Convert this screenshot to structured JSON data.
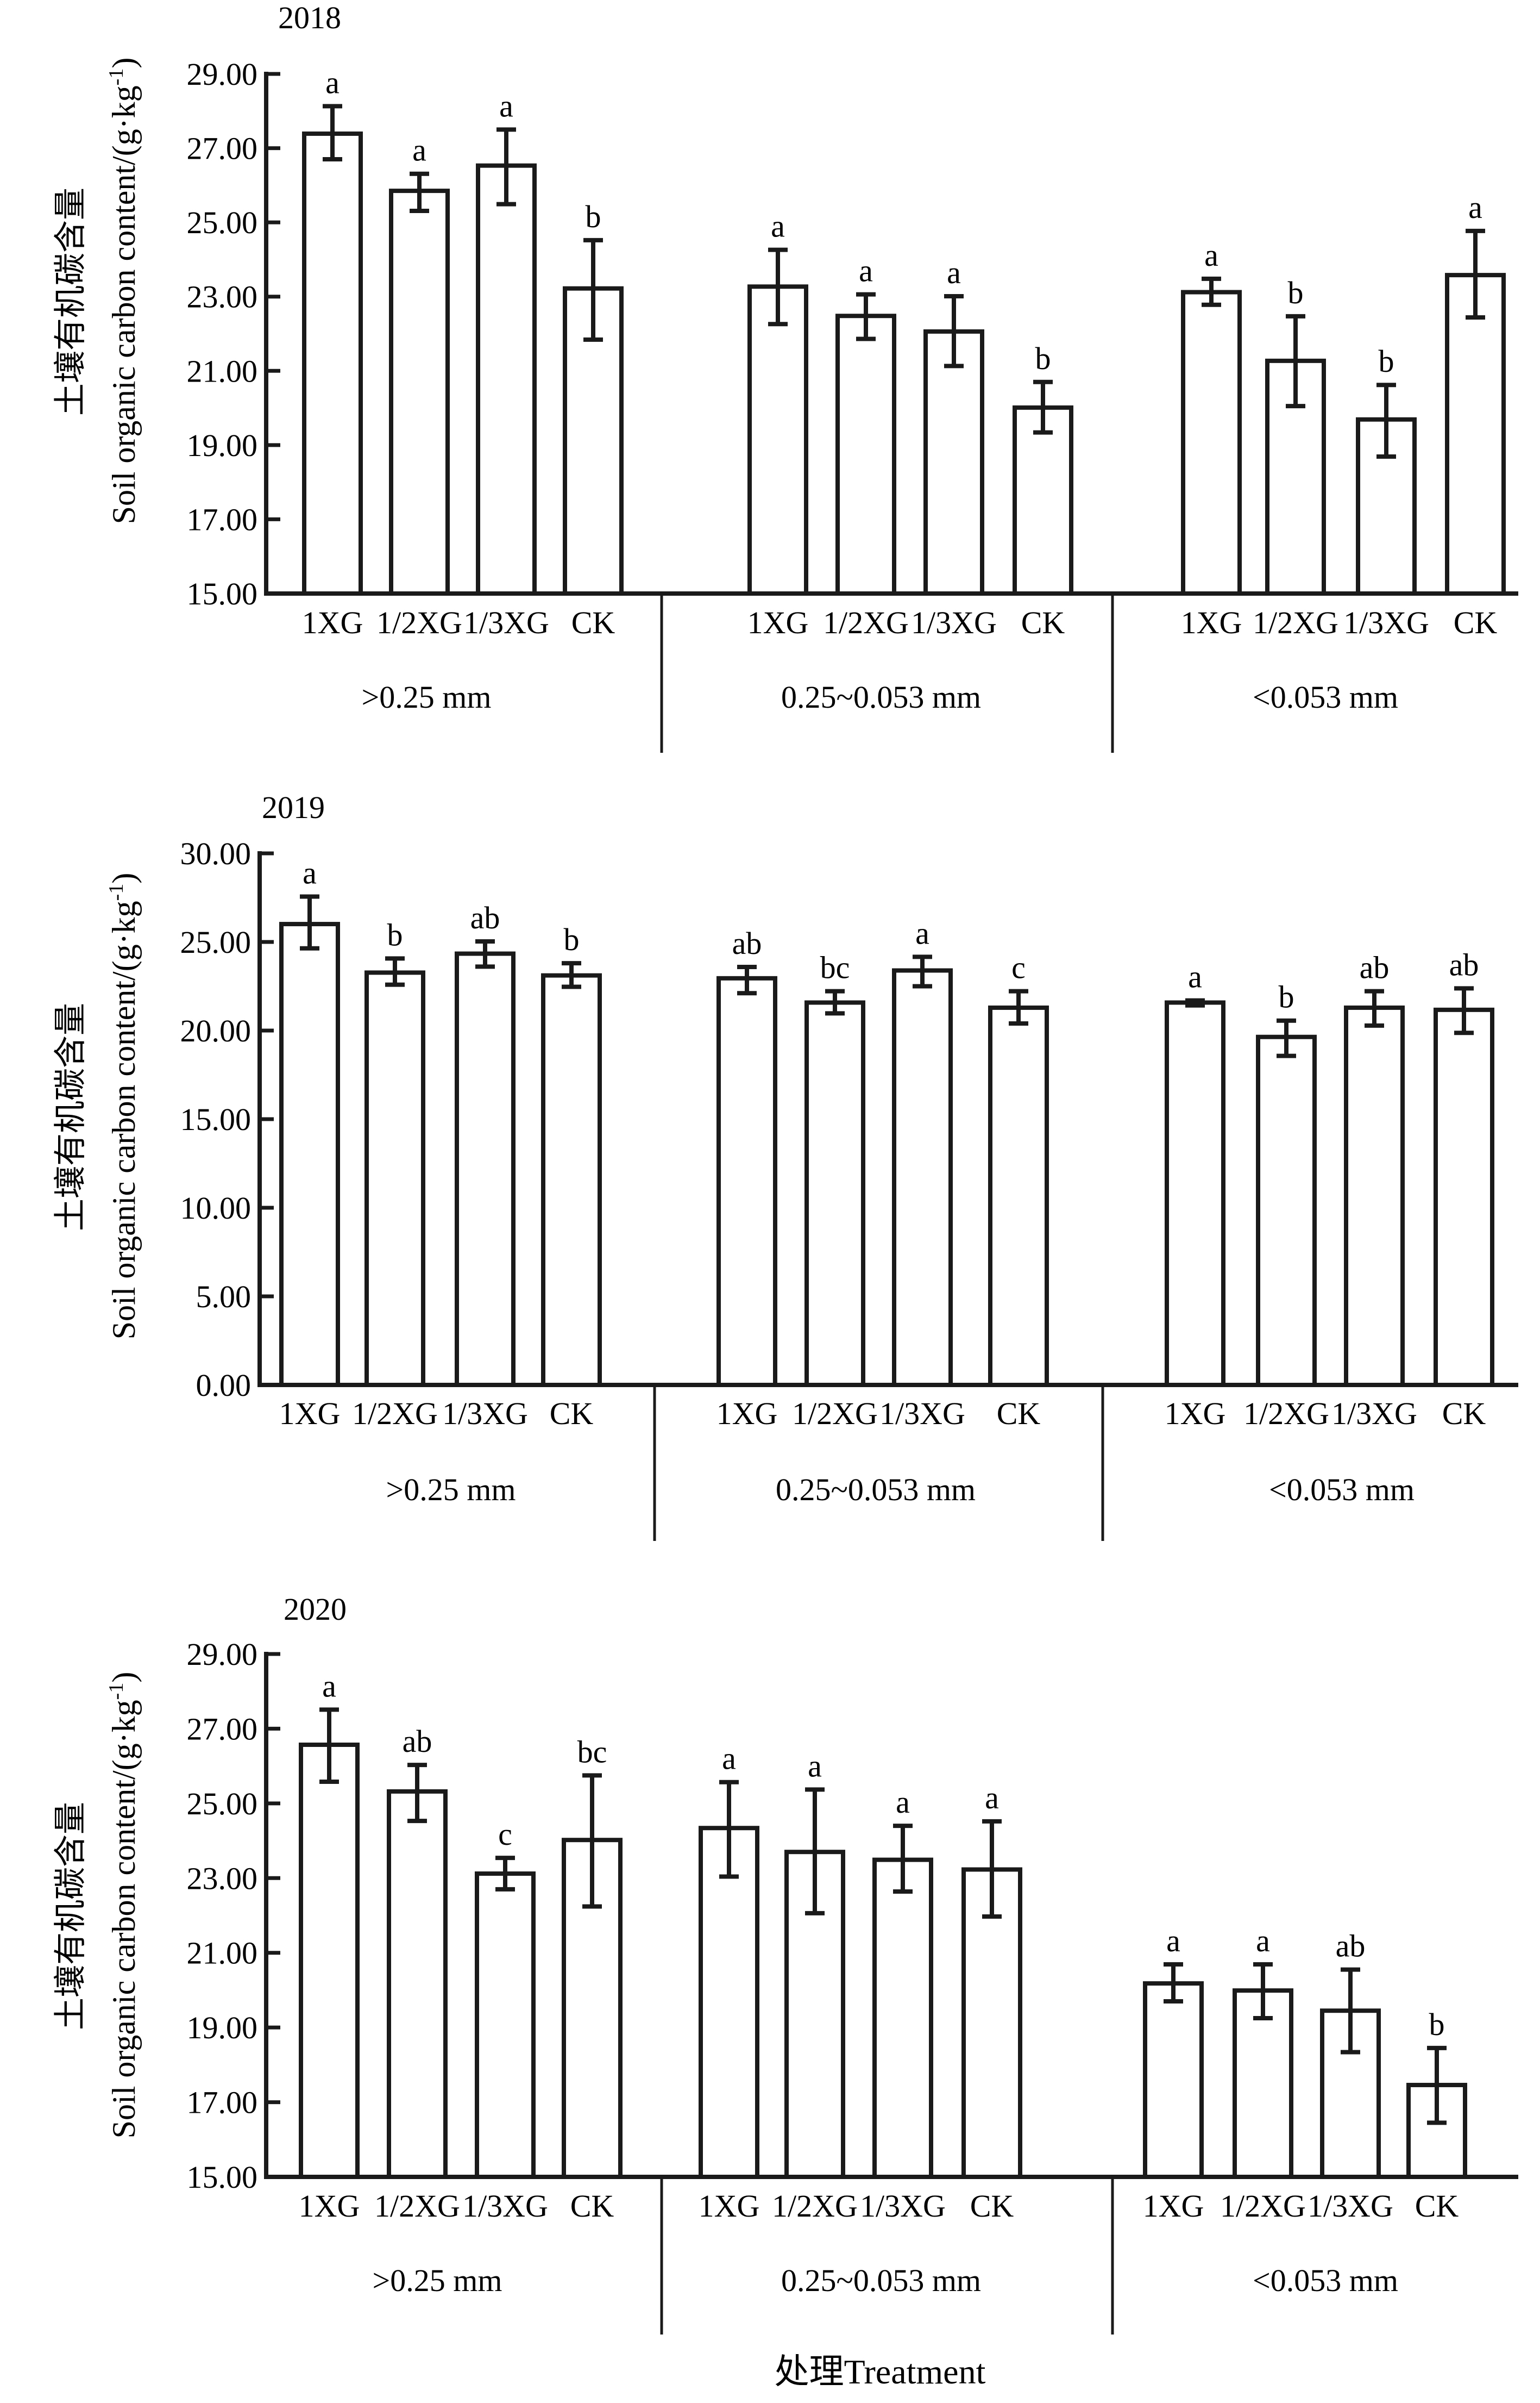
{
  "figure": {
    "x_title": "处理Treatment",
    "y_title_cn": "土壤有机碳含量",
    "y_title_en": "Soil organic carbon content/(g·kg",
    "y_title_sup": "-1",
    "y_title_end": ")"
  },
  "chart_data": [
    {
      "type": "bar",
      "title": "2018",
      "ylabel": "土壤有机碳含量 Soil organic carbon content/(g·kg⁻¹)",
      "xlabel": "",
      "ylim": [
        15,
        29
      ],
      "yticks": [
        "15.00",
        "17.00",
        "19.00",
        "21.00",
        "23.00",
        "25.00",
        "27.00",
        "29.00"
      ],
      "ytick_values": [
        15,
        17,
        19,
        21,
        23,
        25,
        27,
        29
      ],
      "categories": [
        "1XG",
        "1/2XG",
        "1/3XG",
        "CK"
      ],
      "groups": [
        {
          "name": ">0.25 mm",
          "values": [
            27.39,
            25.85,
            26.53,
            23.22
          ],
          "error_upper": [
            28.13,
            26.31,
            27.5,
            24.52
          ],
          "error_lower": [
            26.7,
            25.31,
            25.49,
            21.84
          ],
          "significance": [
            "a",
            "a",
            "a",
            "b"
          ]
        },
        {
          "name": "0.25~0.053 mm",
          "values": [
            23.27,
            22.48,
            22.06,
            20.01
          ],
          "error_upper": [
            24.26,
            23.06,
            23.01,
            20.7
          ],
          "error_lower": [
            22.26,
            21.86,
            21.13,
            19.34
          ],
          "significance": [
            "a",
            "a",
            "a",
            "b"
          ]
        },
        {
          "name": "<0.053 mm",
          "values": [
            23.12,
            21.27,
            19.69,
            23.58
          ],
          "error_upper": [
            23.48,
            22.47,
            20.62,
            24.77
          ],
          "error_lower": [
            22.78,
            20.05,
            18.69,
            22.44
          ],
          "significance": [
            "a",
            "b",
            "b",
            "a"
          ]
        }
      ],
      "grid": false
    },
    {
      "type": "bar",
      "title": "2019",
      "ylabel": "土壤有机碳含量 Soil organic carbon content/(g·kg⁻¹)",
      "xlabel": "",
      "ylim": [
        0,
        30
      ],
      "yticks": [
        "0.00",
        "5.00",
        "10.00",
        "15.00",
        "20.00",
        "25.00",
        "30.00"
      ],
      "ytick_values": [
        0,
        5,
        10,
        15,
        20,
        25,
        30
      ],
      "categories": [
        "1XG",
        "1/2XG",
        "1/3XG",
        "CK"
      ],
      "groups": [
        {
          "name": ">0.25 mm",
          "values": [
            26.01,
            23.27,
            24.34,
            23.11
          ],
          "error_upper": [
            27.56,
            24.07,
            25.03,
            23.8
          ],
          "error_lower": [
            24.64,
            22.59,
            23.61,
            22.47
          ],
          "significance": [
            "a",
            "b",
            "ab",
            "b"
          ]
        },
        {
          "name": "0.25~0.053 mm",
          "values": [
            22.95,
            21.58,
            23.39,
            21.29
          ],
          "error_upper": [
            23.59,
            22.22,
            24.16,
            22.22
          ],
          "error_lower": [
            22.11,
            20.97,
            22.5,
            20.4
          ],
          "significance": [
            "ab",
            "bc",
            "a",
            "c"
          ]
        },
        {
          "name": "<0.053 mm",
          "values": [
            21.58,
            19.64,
            21.29,
            21.17
          ],
          "error_upper": [
            21.7,
            20.56,
            22.22,
            22.38
          ],
          "error_lower": [
            21.42,
            18.57,
            20.28,
            19.87
          ],
          "significance": [
            "a",
            "b",
            "ab",
            "ab"
          ]
        }
      ],
      "grid": false
    },
    {
      "type": "bar",
      "title": "2020",
      "ylabel": "土壤有机碳含量 Soil organic carbon content/(g·kg⁻¹)",
      "xlabel": "处理Treatment",
      "ylim": [
        15,
        29
      ],
      "yticks": [
        "15.00",
        "17.00",
        "19.00",
        "21.00",
        "23.00",
        "25.00",
        "27.00",
        "29.00"
      ],
      "ytick_values": [
        15,
        17,
        19,
        21,
        23,
        25,
        27,
        29
      ],
      "categories": [
        "1XG",
        "1/2XG",
        "1/3XG",
        "CK"
      ],
      "groups": [
        {
          "name": ">0.25 mm",
          "values": [
            26.57,
            25.32,
            23.12,
            24.02
          ],
          "error_upper": [
            27.51,
            26.03,
            23.54,
            25.75
          ],
          "error_lower": [
            25.58,
            24.53,
            22.7,
            22.24
          ],
          "significance": [
            "a",
            "ab",
            "c",
            "bc"
          ]
        },
        {
          "name": "0.25~0.053 mm",
          "values": [
            24.34,
            23.7,
            23.49,
            23.23
          ],
          "error_upper": [
            25.57,
            25.37,
            24.4,
            24.52
          ],
          "error_lower": [
            23.04,
            22.06,
            22.64,
            21.97
          ],
          "significance": [
            "a",
            "a",
            "a",
            "a"
          ]
        },
        {
          "name": "<0.053 mm",
          "values": [
            20.18,
            19.99,
            19.45,
            17.46
          ],
          "error_upper": [
            20.69,
            20.69,
            20.55,
            18.45
          ],
          "error_lower": [
            19.7,
            19.25,
            18.34,
            16.45
          ],
          "significance": [
            "a",
            "a",
            "ab",
            "b"
          ]
        }
      ],
      "grid": false
    }
  ]
}
